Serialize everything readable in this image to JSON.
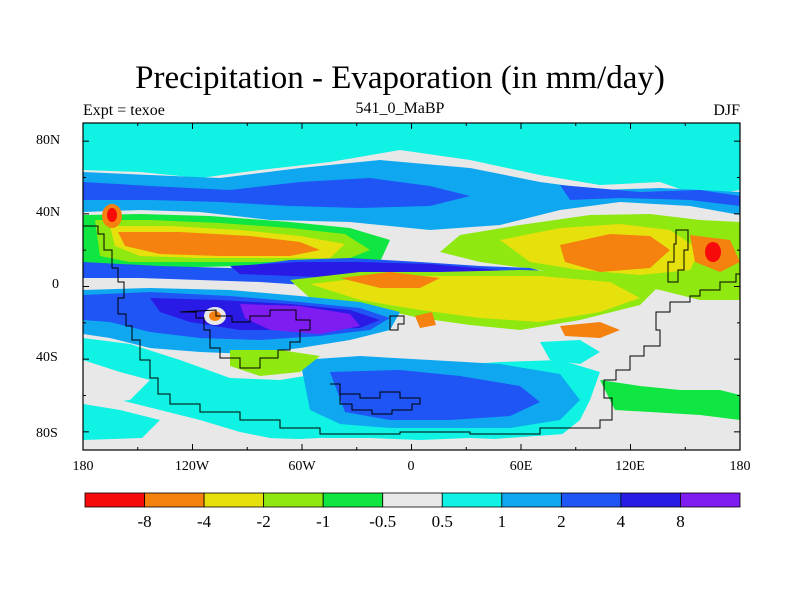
{
  "title": "Precipitation - Evaporation (in mm/day)",
  "subtitle": "541_0_MaBP",
  "left_string": "Expt = texoe",
  "right_string": "DJF",
  "lat_labels": [
    "80N",
    "40N",
    "0",
    "40S",
    "80S"
  ],
  "lon_labels": [
    "180",
    "120W",
    "60W",
    "0",
    "60E",
    "120E",
    "180"
  ],
  "colorbar": {
    "colors": [
      "#f70a0a",
      "#f5820f",
      "#e6e10c",
      "#8fe80f",
      "#10e642",
      "#e8e8e8",
      "#0ff2e4",
      "#0fa8f0",
      "#1f55f5",
      "#2a1ae6",
      "#7f1cf2"
    ],
    "labels": [
      "-8",
      "-4",
      "-2",
      "-1",
      "-0.5",
      "0.5",
      "1",
      "2",
      "4",
      "8"
    ]
  }
}
